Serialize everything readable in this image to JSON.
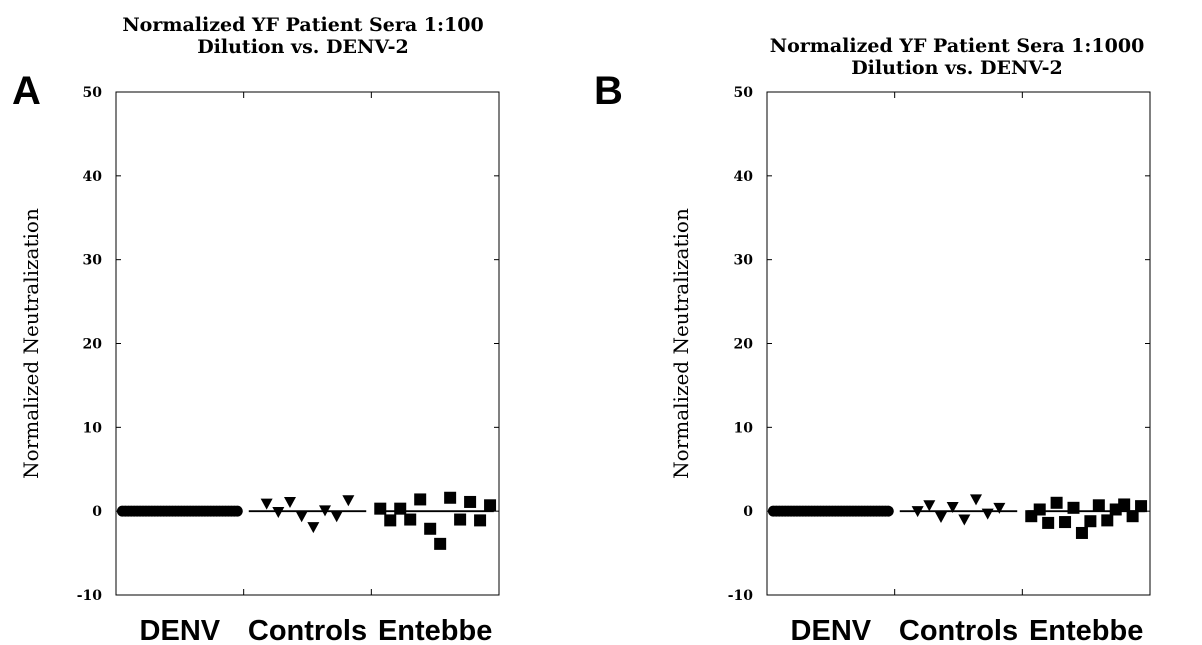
{
  "chart_data": [
    {
      "panel_letter": "A",
      "type": "scatter",
      "title": "Normalized YF Patient Sera 1:100\nDilution vs. DENV-2",
      "ylabel": "Normalized Neutralization",
      "xlabel": "",
      "ylim": [
        -10,
        50
      ],
      "yticks": [
        -10,
        0,
        10,
        20,
        30,
        40,
        50
      ],
      "grid": false,
      "categories": [
        "DENV",
        "Controls",
        "Entebbe"
      ],
      "series": [
        {
          "category": "DENV",
          "marker": "circle",
          "median": 0,
          "values": [
            0,
            0,
            0,
            0,
            0,
            0,
            0,
            0,
            0,
            0,
            0,
            0,
            0,
            0,
            0,
            0,
            0,
            0,
            0,
            0,
            0,
            0,
            0,
            0,
            0,
            0,
            0,
            0,
            0,
            0,
            0,
            0,
            0,
            0,
            0,
            0,
            0,
            0,
            0,
            0
          ]
        },
        {
          "category": "Controls",
          "marker": "triangle-down",
          "median": 0,
          "values": [
            0.9,
            -0.1,
            1.1,
            -0.6,
            -1.9,
            0.1,
            -0.6,
            1.3
          ]
        },
        {
          "category": "Entebbe",
          "marker": "square",
          "median": 0,
          "values": [
            0.3,
            -1.1,
            0.3,
            -1.0,
            1.4,
            -2.1,
            -3.9,
            1.6,
            -1.0,
            1.1,
            -1.1,
            0.7
          ]
        }
      ]
    },
    {
      "panel_letter": "B",
      "type": "scatter",
      "title": "Normalized YF Patient Sera 1:1000\nDilution vs. DENV-2",
      "ylabel": "Normalized Neutralization",
      "xlabel": "",
      "ylim": [
        -10,
        50
      ],
      "yticks": [
        -10,
        0,
        10,
        20,
        30,
        40,
        50
      ],
      "grid": false,
      "categories": [
        "DENV",
        "Controls",
        "Entebbe"
      ],
      "series": [
        {
          "category": "DENV",
          "marker": "circle",
          "median": 0,
          "values": [
            0,
            0,
            0,
            0,
            0,
            0,
            0,
            0,
            0,
            0,
            0,
            0,
            0,
            0,
            0,
            0,
            0,
            0,
            0,
            0,
            0,
            0,
            0,
            0,
            0,
            0,
            0,
            0,
            0,
            0,
            0,
            0,
            0,
            0,
            0,
            0,
            0,
            0,
            0,
            0
          ]
        },
        {
          "category": "Controls",
          "marker": "triangle-down",
          "median": 0,
          "values": [
            0.0,
            0.7,
            -0.7,
            0.5,
            -1.0,
            1.4,
            -0.3,
            0.4
          ]
        },
        {
          "category": "Entebbe",
          "marker": "square",
          "median": 0,
          "values": [
            -0.6,
            0.2,
            -1.4,
            1.0,
            -1.3,
            0.4,
            -2.6,
            -1.2,
            0.7,
            -1.1,
            0.2,
            0.8,
            -0.6,
            0.6
          ]
        }
      ]
    }
  ]
}
